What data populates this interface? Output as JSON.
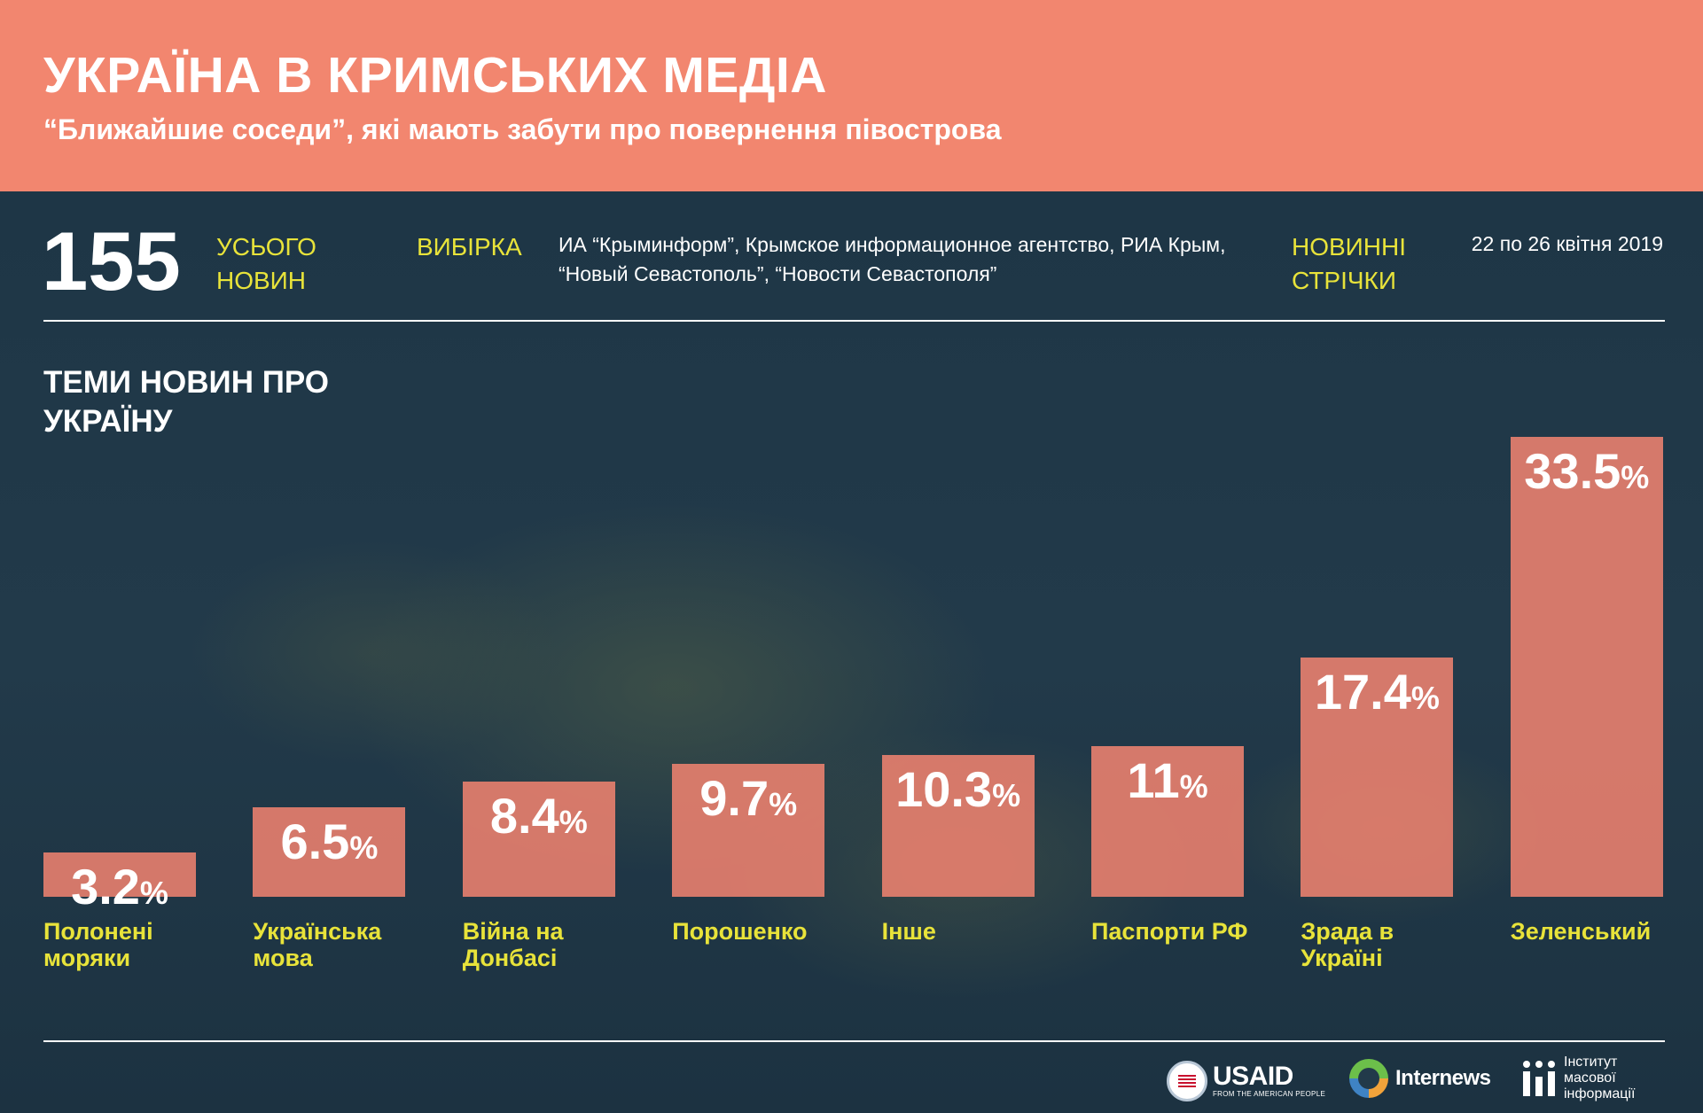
{
  "header": {
    "title": "УКРАЇНА В КРИМСЬКИХ МЕДІА",
    "subtitle": "“Ближайшие соседи”, які мають забути про повернення півострова",
    "bg_color": "#f2866f"
  },
  "summary": {
    "total_number": "155",
    "total_label": "УСЬОГО НОВИН",
    "sample_label": "ВИБІРКА",
    "sample_text": "ИА “Крыминформ”, Крымское информационное агентство, РИА Крым, “Новый Севастополь”, “Новости Севастополя”",
    "feeds_label": "НОВИННІ СТРІЧКИ",
    "date_range": "22 по 26 квітня 2019"
  },
  "section_title": "ТЕМИ НОВИН ПРО УКРАЇНУ",
  "chart_data": {
    "type": "bar",
    "title": "ТЕМИ НОВИН ПРО УКРАЇНУ",
    "unit": "%",
    "categories": [
      "Полонені моряки",
      "Українська мова",
      "Війна на Донбасі",
      "Порошенко",
      "Інше",
      "Паспорти РФ",
      "Зрада в Україні",
      "Зеленський"
    ],
    "values": [
      3.2,
      6.5,
      8.4,
      9.7,
      10.3,
      11,
      17.4,
      33.5
    ],
    "value_labels": [
      "3.2",
      "6.5",
      "8.4",
      "9.7",
      "10.3",
      "11",
      "17.4",
      "33.5"
    ],
    "bar_color": "#ee8270",
    "label_color": "#e8e33a",
    "grid": false,
    "legend": "none"
  },
  "logos": {
    "usaid": "USAID",
    "usaid_sub": "FROM THE AMERICAN PEOPLE",
    "internews": "Internews",
    "imi": "Інститут масової інформації"
  }
}
